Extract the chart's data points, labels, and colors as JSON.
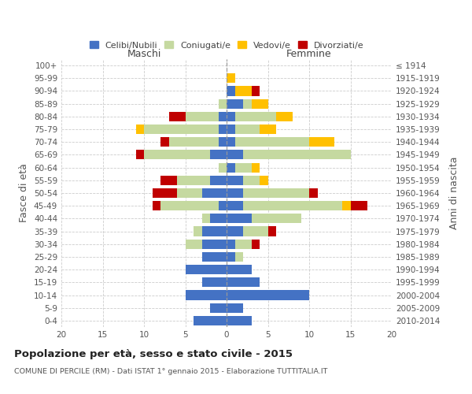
{
  "age_groups": [
    "0-4",
    "5-9",
    "10-14",
    "15-19",
    "20-24",
    "25-29",
    "30-34",
    "35-39",
    "40-44",
    "45-49",
    "50-54",
    "55-59",
    "60-64",
    "65-69",
    "70-74",
    "75-79",
    "80-84",
    "85-89",
    "90-94",
    "95-99",
    "100+"
  ],
  "birth_years": [
    "2010-2014",
    "2005-2009",
    "2000-2004",
    "1995-1999",
    "1990-1994",
    "1985-1989",
    "1980-1984",
    "1975-1979",
    "1970-1974",
    "1965-1969",
    "1960-1964",
    "1955-1959",
    "1950-1954",
    "1945-1949",
    "1940-1944",
    "1935-1939",
    "1930-1934",
    "1925-1929",
    "1920-1924",
    "1915-1919",
    "≤ 1914"
  ],
  "colors": {
    "celibi": "#4472c4",
    "coniugati": "#c5d9a0",
    "vedovi": "#ffc000",
    "divorziati": "#c00000"
  },
  "maschi": {
    "celibi": [
      4,
      2,
      5,
      3,
      5,
      3,
      3,
      3,
      2,
      1,
      3,
      2,
      0,
      2,
      1,
      1,
      1,
      0,
      0,
      0,
      0
    ],
    "coniugati": [
      0,
      0,
      0,
      0,
      0,
      0,
      2,
      1,
      1,
      7,
      3,
      4,
      1,
      8,
      6,
      9,
      4,
      1,
      0,
      0,
      0
    ],
    "vedovi": [
      0,
      0,
      0,
      0,
      0,
      0,
      0,
      0,
      0,
      0,
      0,
      0,
      0,
      0,
      0,
      1,
      0,
      0,
      0,
      0,
      0
    ],
    "divorziati": [
      0,
      0,
      0,
      0,
      0,
      0,
      0,
      0,
      0,
      1,
      3,
      2,
      0,
      1,
      1,
      0,
      2,
      0,
      0,
      0,
      0
    ]
  },
  "femmine": {
    "celibi": [
      3,
      2,
      10,
      4,
      3,
      1,
      1,
      2,
      3,
      2,
      2,
      2,
      1,
      2,
      1,
      1,
      1,
      2,
      1,
      0,
      0
    ],
    "coniugati": [
      0,
      0,
      0,
      0,
      0,
      1,
      2,
      3,
      6,
      12,
      8,
      2,
      2,
      13,
      9,
      3,
      5,
      1,
      0,
      0,
      0
    ],
    "vedovi": [
      0,
      0,
      0,
      0,
      0,
      0,
      0,
      0,
      0,
      1,
      0,
      1,
      1,
      0,
      3,
      2,
      2,
      2,
      2,
      1,
      0
    ],
    "divorziati": [
      0,
      0,
      0,
      0,
      0,
      0,
      1,
      1,
      0,
      2,
      1,
      0,
      0,
      0,
      0,
      0,
      0,
      0,
      1,
      0,
      0
    ]
  },
  "xlim": 20,
  "title": "Popolazione per età, sesso e stato civile - 2015",
  "subtitle": "COMUNE DI PERCILE (RM) - Dati ISTAT 1° gennaio 2015 - Elaborazione TUTTITALIA.IT",
  "ylabel_left": "Fasce di età",
  "ylabel_right": "Anni di nascita",
  "bg_color": "#f5f5f5",
  "plot_bg_color": "#ffffff"
}
